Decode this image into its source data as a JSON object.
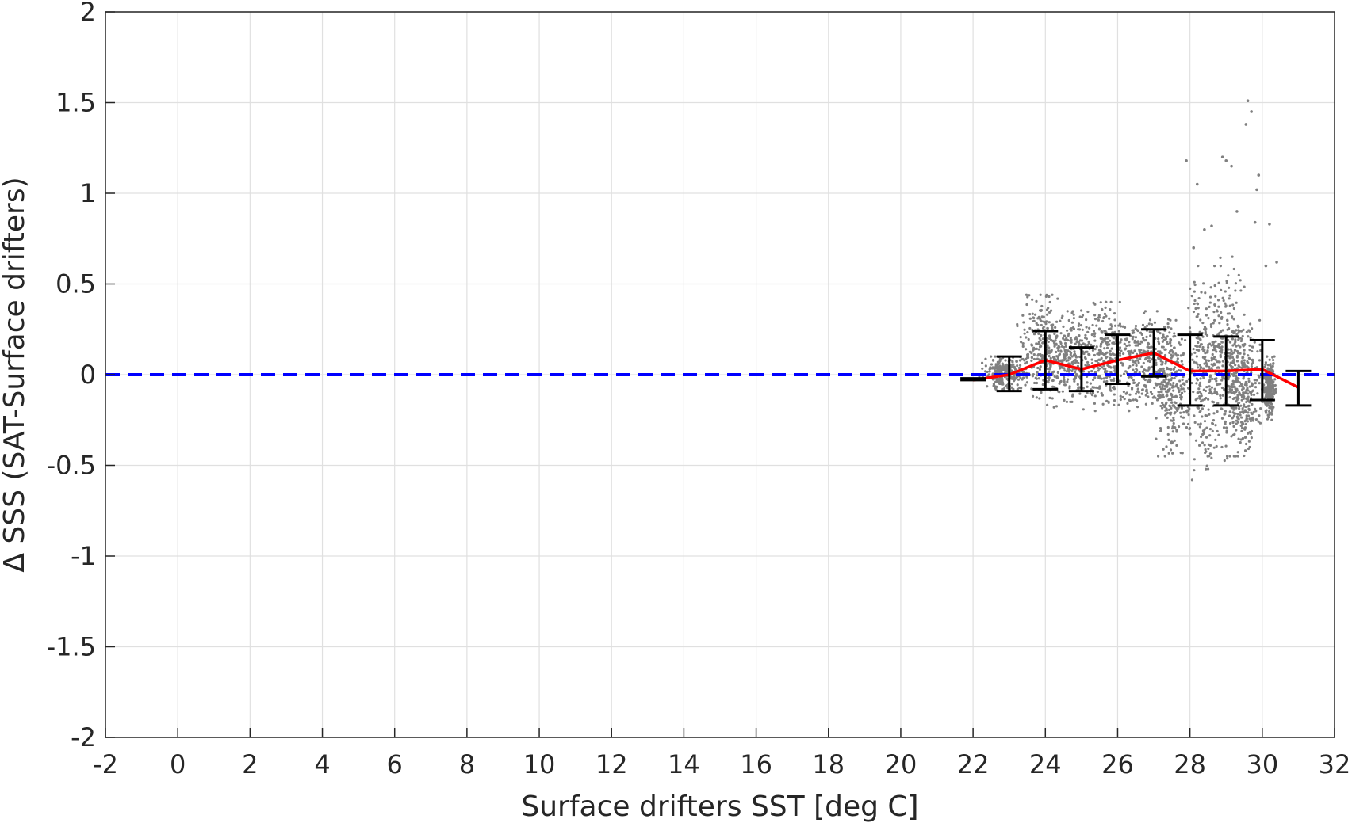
{
  "chart_data": {
    "type": "scatter",
    "xlabel": "Surface drifters SST [deg C]",
    "ylabel": "Δ SSS (SAT-Surface drifters)",
    "xlim": [
      -2,
      32
    ],
    "ylim": [
      -2,
      2
    ],
    "xticks": [
      "-2",
      "0",
      "2",
      "4",
      "6",
      "8",
      "10",
      "12",
      "14",
      "16",
      "18",
      "20",
      "22",
      "24",
      "26",
      "28",
      "30",
      "32"
    ],
    "yticks": [
      "2",
      "1.5",
      "1",
      "0.5",
      "0",
      "-0.5",
      "-1",
      "-1.5",
      "-2"
    ],
    "grid": true,
    "colors": {
      "scatter": "#808080",
      "mean_line": "#ff0000",
      "zero_line": "#0000ff",
      "error_bars": "#000000",
      "grid": "#e0e0e0",
      "axes": "#262626"
    },
    "series": [
      {
        "kind": "binned_mean_with_error_bars",
        "x": [
          22,
          23,
          24,
          25,
          26,
          27,
          28,
          29,
          30,
          31
        ],
        "y": [
          -0.03,
          0.0,
          0.08,
          0.03,
          0.08,
          0.12,
          0.02,
          0.02,
          0.03,
          -0.07
        ],
        "err_low": [
          -0.03,
          -0.09,
          -0.08,
          -0.09,
          -0.05,
          -0.01,
          -0.17,
          -0.17,
          -0.14,
          -0.17
        ],
        "err_high": [
          -0.02,
          0.1,
          0.24,
          0.15,
          0.22,
          0.25,
          0.22,
          0.21,
          0.19,
          0.02
        ]
      },
      {
        "kind": "reference_line",
        "y": 0
      },
      {
        "kind": "scatter_cloud",
        "clusters": [
          {
            "x": [
              22.2,
              23.5
            ],
            "y": [
              -0.08,
              0.1
            ]
          },
          {
            "x": [
              23.2,
              24.6
            ],
            "y": [
              -0.18,
              0.44
            ]
          },
          {
            "x": [
              24.0,
              25.5
            ],
            "y": [
              -0.15,
              0.35
            ]
          },
          {
            "x": [
              25.0,
              26.5
            ],
            "y": [
              -0.2,
              0.4
            ]
          },
          {
            "x": [
              26.0,
              27.5
            ],
            "y": [
              -0.2,
              0.35
            ]
          },
          {
            "x": [
              27.0,
              28.0
            ],
            "y": [
              -0.45,
              0.3
            ]
          },
          {
            "x": [
              27.8,
              29.0
            ],
            "y": [
              -0.58,
              0.6
            ]
          },
          {
            "x": [
              28.5,
              29.6
            ],
            "y": [
              -0.45,
              0.65
            ]
          },
          {
            "x": [
              29.0,
              30.0
            ],
            "y": [
              -0.45,
              0.3
            ]
          },
          {
            "x": [
              30.0,
              30.4
            ],
            "y": [
              -0.25,
              0.1
            ]
          }
        ],
        "outliers": [
          {
            "x": 29.6,
            "y": 1.51
          },
          {
            "x": 29.7,
            "y": 1.45
          },
          {
            "x": 29.55,
            "y": 1.38
          },
          {
            "x": 28.9,
            "y": 1.2
          },
          {
            "x": 29.0,
            "y": 1.18
          },
          {
            "x": 29.15,
            "y": 1.15
          },
          {
            "x": 27.9,
            "y": 1.18
          },
          {
            "x": 28.2,
            "y": 1.05
          },
          {
            "x": 29.9,
            "y": 1.1
          },
          {
            "x": 29.85,
            "y": 1.02
          },
          {
            "x": 29.3,
            "y": 0.9
          },
          {
            "x": 28.6,
            "y": 0.82
          },
          {
            "x": 30.2,
            "y": 0.83
          },
          {
            "x": 29.8,
            "y": 0.84
          },
          {
            "x": 30.4,
            "y": 0.62
          },
          {
            "x": 30.1,
            "y": 0.6
          },
          {
            "x": 28.4,
            "y": 0.8
          },
          {
            "x": 28.1,
            "y": 0.7
          }
        ]
      }
    ]
  }
}
